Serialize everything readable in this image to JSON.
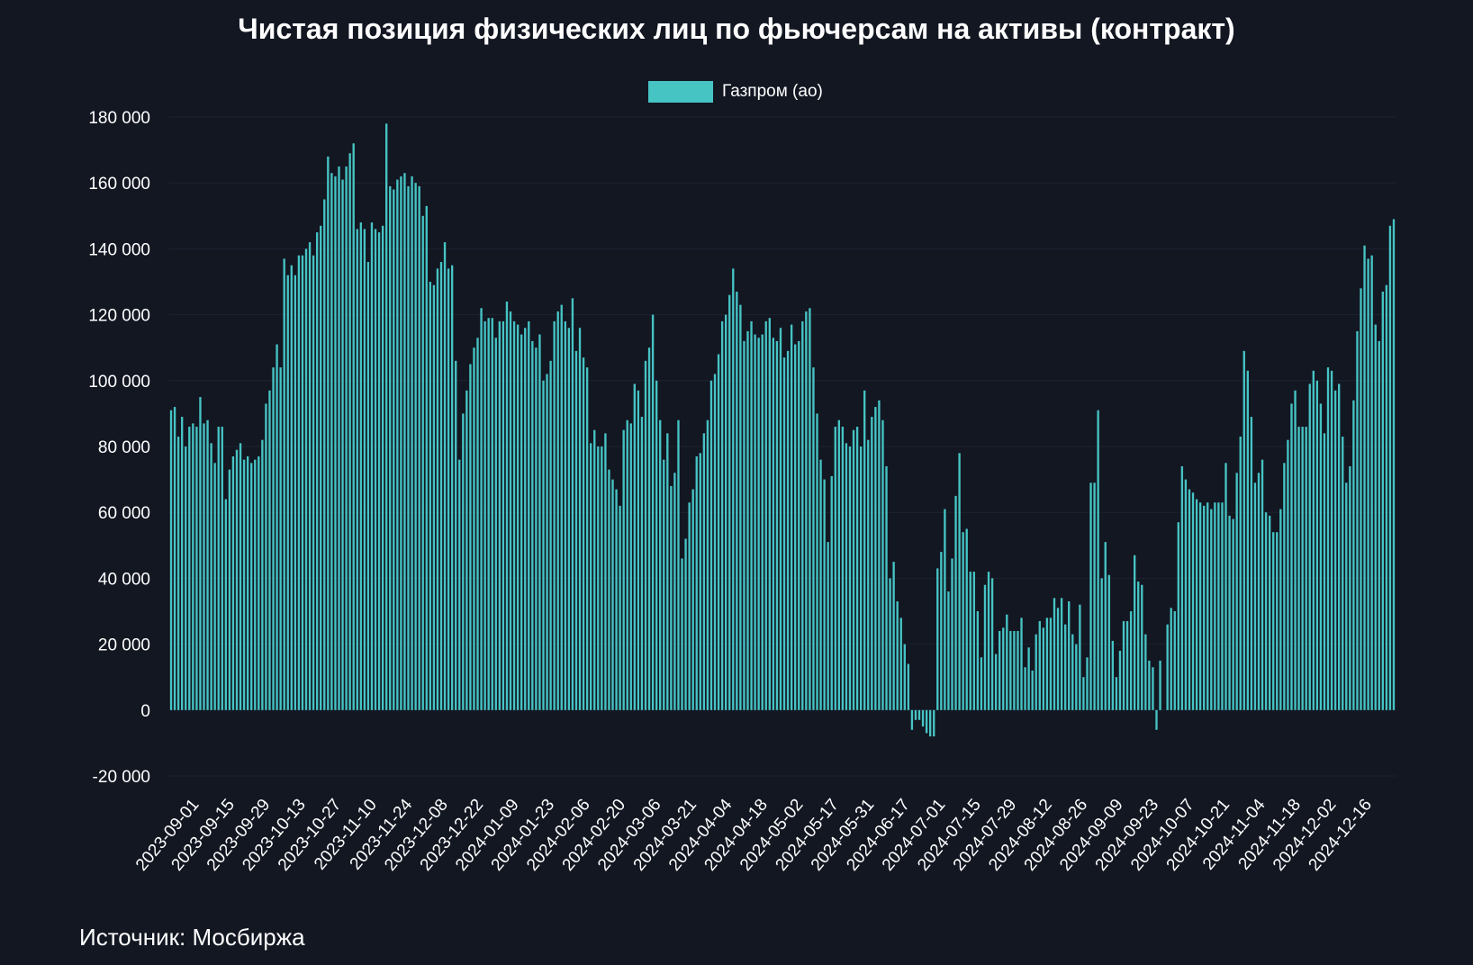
{
  "chart_data": {
    "type": "bar",
    "title": "Чистая позиция физических лиц по фьючерсам на активы  (контракт)",
    "series_name": "Газпром (ао)",
    "legend_position": "top-center",
    "source": "Источник: Мосбиржа",
    "color": "#46c4c4",
    "ylim": [
      -20000,
      180000
    ],
    "yticks": [
      -20000,
      0,
      20000,
      40000,
      60000,
      80000,
      100000,
      120000,
      140000,
      160000,
      180000
    ],
    "ytick_labels": [
      "-20 000",
      "0",
      "20 000",
      "40 000",
      "60 000",
      "80 000",
      "100 000",
      "120 000",
      "140 000",
      "160 000",
      "180 000"
    ],
    "xtick_labels": [
      "2023-09-01",
      "2023-09-15",
      "2023-09-29",
      "2023-10-13",
      "2023-10-27",
      "2023-11-10",
      "2023-11-24",
      "2023-12-08",
      "2023-12-22",
      "2024-01-09",
      "2024-01-23",
      "2024-02-06",
      "2024-02-20",
      "2024-03-06",
      "2024-03-21",
      "2024-04-04",
      "2024-04-18",
      "2024-05-02",
      "2024-05-17",
      "2024-05-31",
      "2024-06-17",
      "2024-07-01",
      "2024-07-15",
      "2024-07-29",
      "2024-08-12",
      "2024-08-26",
      "2024-09-09",
      "2024-09-23",
      "2024-10-07",
      "2024-10-21",
      "2024-11-04",
      "2024-11-18",
      "2024-12-02",
      "2024-12-16"
    ],
    "values": [
      91000,
      92000,
      83000,
      89000,
      80000,
      86000,
      87000,
      86000,
      95000,
      87000,
      88000,
      81000,
      75000,
      86000,
      86000,
      64000,
      73000,
      77000,
      79000,
      81000,
      76000,
      77000,
      75000,
      76000,
      77000,
      82000,
      93000,
      97000,
      104000,
      111000,
      104000,
      137000,
      132000,
      135000,
      132000,
      138000,
      138000,
      140000,
      142000,
      138000,
      145000,
      147000,
      155000,
      168000,
      163000,
      162000,
      165000,
      161000,
      165000,
      169000,
      172000,
      146000,
      148000,
      146000,
      136000,
      148000,
      146000,
      145000,
      147000,
      178000,
      159000,
      158000,
      161000,
      162000,
      163000,
      159000,
      162000,
      160000,
      159000,
      150000,
      153000,
      130000,
      129000,
      134000,
      136000,
      142000,
      134000,
      135000,
      106000,
      76000,
      90000,
      97000,
      105000,
      110000,
      113000,
      122000,
      118000,
      119000,
      119000,
      113000,
      118000,
      118000,
      124000,
      121000,
      118000,
      117000,
      114000,
      116000,
      118000,
      112000,
      110000,
      114000,
      100000,
      102000,
      106000,
      118000,
      121000,
      123000,
      118000,
      116000,
      125000,
      109000,
      116000,
      107000,
      104000,
      81000,
      85000,
      80000,
      80000,
      84000,
      73000,
      70000,
      67000,
      62000,
      85000,
      88000,
      87000,
      99000,
      97000,
      89000,
      106000,
      110000,
      120000,
      100000,
      88000,
      76000,
      84000,
      68000,
      72000,
      88000,
      46000,
      52000,
      63000,
      67000,
      77000,
      78000,
      84000,
      88000,
      100000,
      102000,
      108000,
      118000,
      120000,
      126000,
      134000,
      127000,
      123000,
      112000,
      115000,
      118000,
      114000,
      113000,
      114000,
      118000,
      119000,
      113000,
      112000,
      116000,
      107000,
      109000,
      117000,
      111000,
      112000,
      118000,
      121000,
      122000,
      104000,
      90000,
      76000,
      70000,
      51000,
      71000,
      86000,
      88000,
      86000,
      81000,
      80000,
      85000,
      86000,
      80000,
      97000,
      82000,
      89000,
      92000,
      94000,
      88000,
      74000,
      40000,
      45000,
      33000,
      28000,
      20000,
      14000,
      -6000,
      -3000,
      -3000,
      -5000,
      -7000,
      -8000,
      -8000,
      43000,
      48000,
      61000,
      36000,
      46000,
      65000,
      78000,
      54000,
      55000,
      42000,
      42000,
      30000,
      16000,
      38000,
      42000,
      40000,
      17000,
      24000,
      25000,
      29000,
      24000,
      24000,
      24000,
      28000,
      13000,
      19000,
      12000,
      23000,
      27000,
      25000,
      28000,
      28000,
      34000,
      31000,
      34000,
      26000,
      33000,
      23000,
      20000,
      32000,
      10000,
      16000,
      69000,
      69000,
      91000,
      40000,
      51000,
      41000,
      21000,
      10000,
      18000,
      27000,
      27000,
      30000,
      47000,
      39000,
      38000,
      23000,
      15000,
      13000,
      -6000,
      15000,
      0,
      26000,
      31000,
      30000,
      57000,
      74000,
      70000,
      67000,
      66000,
      64000,
      63000,
      62000,
      63000,
      61000,
      63000,
      63000,
      63000,
      75000,
      59000,
      58000,
      72000,
      83000,
      109000,
      103000,
      89000,
      69000,
      72000,
      76000,
      60000,
      59000,
      54000,
      54000,
      61000,
      75000,
      82000,
      93000,
      97000,
      86000,
      86000,
      86000,
      99000,
      103000,
      100000,
      93000,
      84000,
      104000,
      103000,
      97000,
      99000,
      83000,
      69000,
      74000,
      94000,
      115000,
      128000,
      141000,
      137000,
      138000,
      117000,
      112000,
      127000,
      129000,
      147000,
      149000
    ]
  }
}
